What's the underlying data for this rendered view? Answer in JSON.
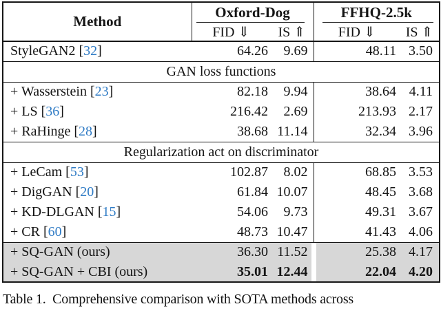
{
  "colors": {
    "highlight_row": "#d7d7d7",
    "citation_blue": "#2f7bc5",
    "border": "#161616"
  },
  "table": {
    "header": {
      "method_label": "Method",
      "groups": [
        {
          "label": "Oxford-Dog"
        },
        {
          "label": "FFHQ-2.5k"
        }
      ],
      "metrics": [
        {
          "label": "FID ⇓"
        },
        {
          "label": "IS ⇑"
        },
        {
          "label": "FID ⇓"
        },
        {
          "label": "IS ⇑"
        }
      ]
    },
    "rows": [
      {
        "type": "data",
        "method": "StyleGAN2",
        "cite": "32",
        "values": [
          "64.26",
          "9.69",
          "48.11",
          "3.50"
        ]
      },
      {
        "type": "section",
        "label": "GAN loss functions"
      },
      {
        "type": "data",
        "method": "+ Wasserstein",
        "cite": "23",
        "values": [
          "82.18",
          "9.94",
          "38.64",
          "4.11"
        ]
      },
      {
        "type": "data",
        "method": "+ LS",
        "cite": "36",
        "values": [
          "216.42",
          "2.69",
          "213.93",
          "2.17"
        ]
      },
      {
        "type": "data",
        "method": "+ RaHinge",
        "cite": "28",
        "values": [
          "38.68",
          "11.14",
          "32.34",
          "3.96"
        ]
      },
      {
        "type": "section",
        "label": "Regularization act on discriminator"
      },
      {
        "type": "data",
        "method": "+ LeCam",
        "cite": "53",
        "values": [
          "102.87",
          "8.02",
          "68.85",
          "3.53"
        ]
      },
      {
        "type": "data",
        "method": "+ DigGAN",
        "cite": "20",
        "values": [
          "61.84",
          "10.07",
          "48.45",
          "3.68"
        ]
      },
      {
        "type": "data",
        "method": "+ KD-DLGAN",
        "cite": "15",
        "values": [
          "54.06",
          "9.73",
          "49.31",
          "3.67"
        ]
      },
      {
        "type": "data",
        "method": "+ CR",
        "cite": "60",
        "values": [
          "48.73",
          "10.47",
          "41.43",
          "4.06"
        ]
      },
      {
        "type": "data",
        "method": "+ SQ-GAN (ours)",
        "cite": null,
        "values": [
          "36.30",
          "11.52",
          "25.38",
          "4.17"
        ],
        "highlight": true,
        "rule_above": true
      },
      {
        "type": "data",
        "method": "+ SQ-GAN + CBI (ours)",
        "cite": null,
        "values": [
          "35.01",
          "12.44",
          "22.04",
          "4.20"
        ],
        "highlight": true,
        "bold": true
      }
    ]
  },
  "caption": {
    "text": "Table 1.  Comprehensive comparison with SOTA methods across"
  }
}
